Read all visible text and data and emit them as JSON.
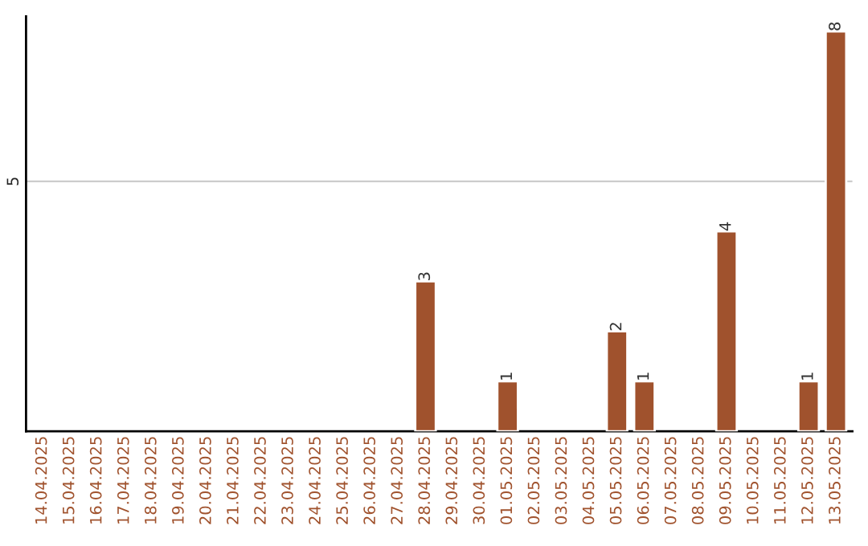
{
  "chart_data": {
    "type": "bar",
    "categories": [
      "14.04.2025",
      "15.04.2025",
      "16.04.2025",
      "17.04.2025",
      "18.04.2025",
      "19.04.2025",
      "20.04.2025",
      "21.04.2025",
      "22.04.2025",
      "23.04.2025",
      "24.04.2025",
      "25.04.2025",
      "26.04.2025",
      "27.04.2025",
      "28.04.2025",
      "29.04.2025",
      "30.04.2025",
      "01.05.2025",
      "02.05.2025",
      "03.05.2025",
      "04.05.2025",
      "05.05.2025",
      "06.05.2025",
      "07.05.2025",
      "08.05.2025",
      "09.05.2025",
      "10.05.2025",
      "11.05.2025",
      "12.05.2025",
      "13.05.2025"
    ],
    "values": [
      null,
      null,
      null,
      null,
      null,
      null,
      null,
      null,
      null,
      null,
      null,
      null,
      null,
      null,
      3,
      null,
      null,
      1,
      null,
      null,
      null,
      2,
      1,
      null,
      null,
      4,
      null,
      null,
      1,
      8
    ],
    "data_labels": true,
    "color": "#a0522d",
    "ylim": [
      0,
      8.3
    ],
    "yticks": [
      5
    ],
    "grid": "y"
  }
}
